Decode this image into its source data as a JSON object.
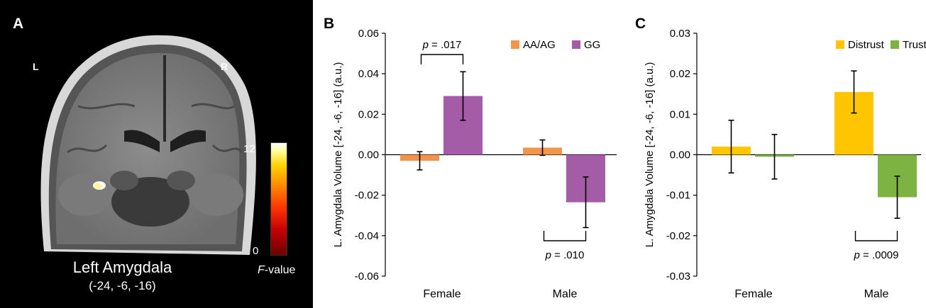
{
  "panelA": {
    "letter": "A",
    "left_label": "L",
    "right_label": "R",
    "region_name": "Left Amygdala",
    "region_coords": "(-24, -6, -16)",
    "colorbar": {
      "max": "12",
      "min": "0",
      "label_italic": "F",
      "label_rest": "-value"
    }
  },
  "chart_data": [
    {
      "panel": "B",
      "type": "bar",
      "ylabel": "L. Amygdala Volume [-24, -6, -16] (a.u.)",
      "categories": [
        "Female",
        "Male"
      ],
      "ylim": [
        -0.06,
        0.06
      ],
      "yticks": [
        "0.06",
        "0.04",
        "0.02",
        "0.00",
        "-0.02",
        "-0.04",
        "-0.06"
      ],
      "series": [
        {
          "name": "AA/AG",
          "color": "#f4934a",
          "values": [
            -0.003,
            0.0035
          ],
          "errors": [
            0.0045,
            0.0038
          ]
        },
        {
          "name": "GG",
          "color": "#a35ca5",
          "values": [
            0.029,
            -0.0235
          ],
          "errors": [
            0.012,
            0.0125
          ]
        }
      ],
      "annotations": [
        {
          "text": "p = .017",
          "p_label": "p",
          "value": " = .017",
          "category": "Female",
          "position": "above"
        },
        {
          "text": "p = .010",
          "p_label": "p",
          "value": " = .010",
          "category": "Male",
          "position": "below"
        }
      ],
      "legend_position": "top-right"
    },
    {
      "panel": "C",
      "type": "bar",
      "ylabel": "L. Amygdala Volume [-24, -6, -16] (a.u.)",
      "categories": [
        "Female",
        "Male"
      ],
      "ylim": [
        -0.03,
        0.03
      ],
      "yticks": [
        "0.03",
        "0.02",
        "0.01",
        "0.00",
        "-0.01",
        "-0.02",
        "-0.03"
      ],
      "series": [
        {
          "name": "Distrust",
          "color": "#ffc600",
          "values": [
            0.002,
            0.0155
          ],
          "errors": [
            0.0065,
            0.0052
          ]
        },
        {
          "name": "Trust",
          "color": "#7cb342",
          "values": [
            -0.0005,
            -0.0105
          ],
          "errors": [
            0.0055,
            0.0052
          ]
        }
      ],
      "annotations": [
        {
          "text": "p = .0009",
          "p_label": "p",
          "value": " = .0009",
          "category": "Male",
          "position": "below"
        }
      ],
      "legend_position": "top-right"
    }
  ]
}
